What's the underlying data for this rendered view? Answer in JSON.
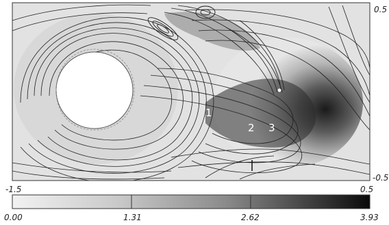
{
  "plot": {
    "x_min_label": "-1.5",
    "x_max_label": "0.5",
    "y_max_label": "0.5",
    "y_min_label": "-0.5",
    "markers": [
      "1",
      "2",
      "3"
    ]
  },
  "colorbar": {
    "ticks": [
      "0.00",
      "1.31",
      "2.62",
      "3.93"
    ],
    "gradient_start": "#f2f2f2",
    "gradient_end": "#0a0a0a"
  }
}
